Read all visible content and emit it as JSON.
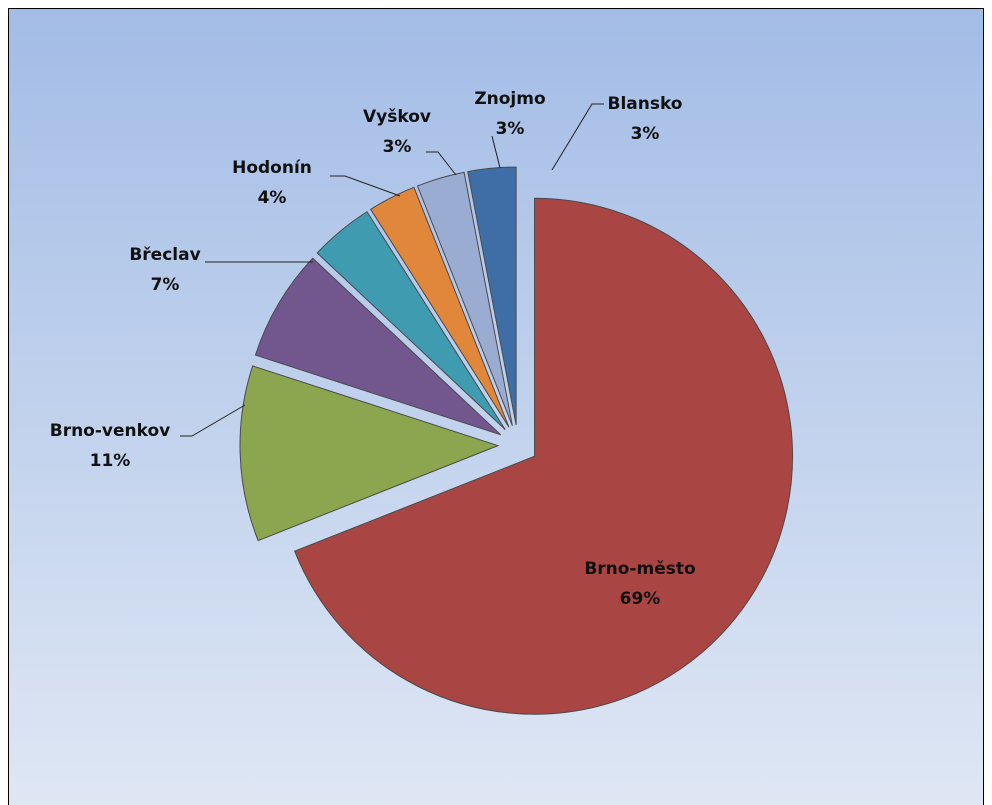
{
  "chart_data": {
    "type": "pie",
    "categories": [
      "Brno-město",
      "Brno-venkov",
      "Břeclav",
      "Hodonín",
      "Vyškov",
      "Znojmo",
      "Blansko"
    ],
    "values": [
      69,
      11,
      7,
      4,
      3,
      3,
      3
    ],
    "value_labels": [
      "69%",
      "11%",
      "7%",
      "4%",
      "3%",
      "3%",
      "3%"
    ],
    "colors": [
      "#a94643",
      "#8ba64f",
      "#72578f",
      "#3e9bb0",
      "#e0873b",
      "#9aacd1",
      "#3f6ea6"
    ]
  }
}
